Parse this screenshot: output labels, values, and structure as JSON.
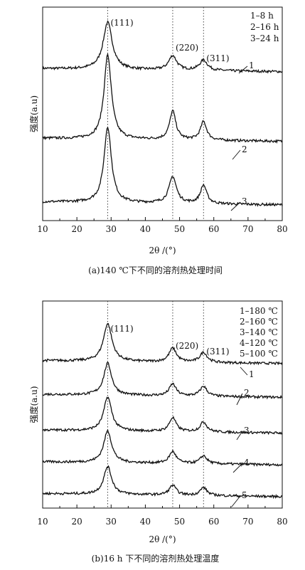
{
  "chart_data": [
    {
      "type": "line",
      "panel_caption": "(a)140 ℃下不同的溶剂热处理时间",
      "xlabel": "2θ /(°)",
      "ylabel": "强度(a.u)",
      "xlim": [
        10,
        80
      ],
      "xticks": [
        "10",
        "20",
        "30",
        "40",
        "50",
        "60",
        "70",
        "80"
      ],
      "grid": false,
      "legend_position": "top-right",
      "legend": [
        "1–8 h",
        "2–16 h",
        "3–24 h"
      ],
      "reference_lines_x": [
        29,
        48,
        57
      ],
      "peak_labels": [
        {
          "x": 29,
          "text": "(111)"
        },
        {
          "x": 48,
          "text": "(220)"
        },
        {
          "x": 57,
          "text": "(311)"
        }
      ],
      "series": [
        {
          "name": "1",
          "baseline": 0.7,
          "peaks": [
            {
              "x": 29,
              "h": 0.23,
              "w": 1.6
            },
            {
              "x": 48,
              "h": 0.07,
              "w": 1.4
            },
            {
              "x": 57,
              "h": 0.05,
              "w": 1.4
            }
          ]
        },
        {
          "name": "2",
          "baseline": 0.36,
          "peaks": [
            {
              "x": 29,
              "h": 0.41,
              "w": 1.3
            },
            {
              "x": 48,
              "h": 0.14,
              "w": 1.1
            },
            {
              "x": 57,
              "h": 0.09,
              "w": 1.1
            }
          ]
        },
        {
          "name": "3",
          "baseline": 0.05,
          "peaks": [
            {
              "x": 29,
              "h": 0.37,
              "w": 1.3
            },
            {
              "x": 48,
              "h": 0.13,
              "w": 1.3
            },
            {
              "x": 57,
              "h": 0.09,
              "w": 1.1
            }
          ]
        }
      ]
    },
    {
      "type": "line",
      "panel_caption": "(b)16 h 下不同的溶剂热处理温度",
      "xlabel": "2θ /(°)",
      "ylabel": "强度(a.u)",
      "xlim": [
        10,
        80
      ],
      "xticks": [
        "10",
        "20",
        "30",
        "40",
        "50",
        "60",
        "70",
        "80"
      ],
      "grid": false,
      "legend_position": "top-right",
      "legend": [
        "1–180 ℃",
        "2–160 ℃",
        "3–140 ℃",
        "4–120 ℃",
        "5–100 ℃"
      ],
      "reference_lines_x": [
        29,
        48,
        57
      ],
      "peak_labels": [
        {
          "x": 29,
          "text": "(111)"
        },
        {
          "x": 48,
          "text": "(220)"
        },
        {
          "x": 57,
          "text": "(311)"
        }
      ],
      "series": [
        {
          "name": "1",
          "baseline": 0.7,
          "peaks": [
            {
              "x": 29,
              "h": 0.19,
              "w": 1.5
            },
            {
              "x": 48,
              "h": 0.07,
              "w": 1.3
            },
            {
              "x": 57,
              "h": 0.05,
              "w": 1.3
            }
          ]
        },
        {
          "name": "2",
          "baseline": 0.53,
          "peaks": [
            {
              "x": 29,
              "h": 0.16,
              "w": 1.4
            },
            {
              "x": 48,
              "h": 0.06,
              "w": 1.2
            },
            {
              "x": 57,
              "h": 0.05,
              "w": 1.2
            }
          ]
        },
        {
          "name": "3",
          "baseline": 0.35,
          "peaks": [
            {
              "x": 29,
              "h": 0.17,
              "w": 1.4
            },
            {
              "x": 48,
              "h": 0.07,
              "w": 1.2
            },
            {
              "x": 57,
              "h": 0.05,
              "w": 1.2
            }
          ]
        },
        {
          "name": "4",
          "baseline": 0.19,
          "peaks": [
            {
              "x": 29,
              "h": 0.16,
              "w": 1.4
            },
            {
              "x": 48,
              "h": 0.06,
              "w": 1.2
            },
            {
              "x": 57,
              "h": 0.04,
              "w": 1.2
            }
          ]
        },
        {
          "name": "5",
          "baseline": 0.03,
          "peaks": [
            {
              "x": 29,
              "h": 0.14,
              "w": 1.4
            },
            {
              "x": 48,
              "h": 0.05,
              "w": 1.2
            },
            {
              "x": 57,
              "h": 0.04,
              "w": 1.2
            }
          ]
        }
      ]
    }
  ]
}
